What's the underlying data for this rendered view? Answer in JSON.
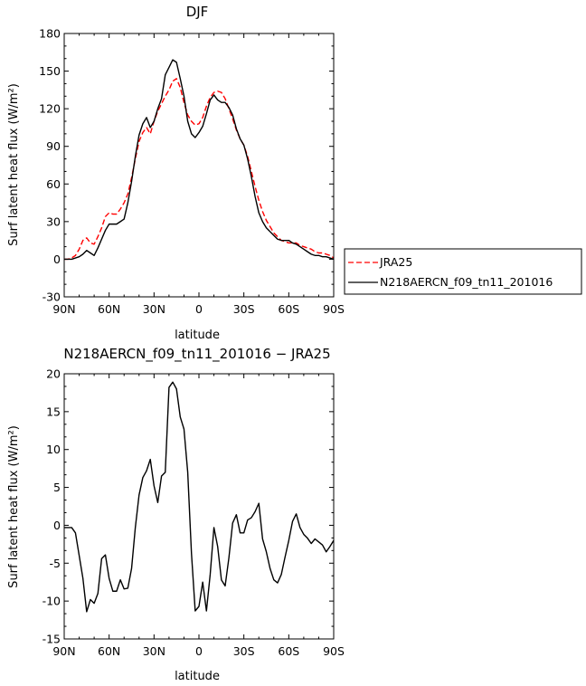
{
  "chart_data": [
    {
      "type": "line",
      "title": "DJF",
      "xlabel": "latitude",
      "ylabel": "Surf latent heat flux (W/m²)",
      "ylim": [
        -30,
        180
      ],
      "xlim": [
        90,
        -90
      ],
      "yticks": [
        -30,
        0,
        30,
        60,
        90,
        120,
        150,
        180
      ],
      "xticks": [
        90,
        60,
        30,
        0,
        -30,
        -60,
        -90
      ],
      "xtick_labels": [
        "90N",
        "60N",
        "30N",
        "0",
        "30S",
        "60S",
        "90S"
      ],
      "legend_position": "right-outside",
      "series": [
        {
          "name": "JRA25",
          "color": "#ff0000",
          "dash": "dashed",
          "x": [
            90,
            87.5,
            85,
            82.5,
            80,
            77.5,
            75,
            72.5,
            70,
            67.5,
            65,
            62.5,
            60,
            57.5,
            55,
            52.5,
            50,
            47.5,
            45,
            42.5,
            40,
            37.5,
            35,
            32.5,
            30,
            27.5,
            25,
            22.5,
            20,
            17.5,
            15,
            12.5,
            10,
            7.5,
            5,
            2.5,
            0,
            -2.5,
            -5,
            -7.5,
            -10,
            -12.5,
            -15,
            -17.5,
            -20,
            -22.5,
            -25,
            -27.5,
            -30,
            -32.5,
            -35,
            -37.5,
            -40,
            -42.5,
            -45,
            -47.5,
            -50,
            -52.5,
            -55,
            -57.5,
            -60,
            -62.5,
            -65,
            -67.5,
            -70,
            -72.5,
            -75,
            -77.5,
            -80,
            -82.5,
            -85,
            -87.5,
            -90
          ],
          "y": [
            0,
            0,
            1,
            3,
            8,
            15,
            17,
            13,
            12,
            18,
            25,
            34,
            37,
            36,
            36,
            40,
            45,
            52,
            65,
            80,
            94,
            101,
            105,
            100,
            110,
            118,
            124,
            130,
            135,
            142,
            144,
            137,
            125,
            115,
            110,
            107,
            108,
            113,
            122,
            129,
            133,
            134,
            133,
            128,
            120,
            112,
            103,
            96,
            91,
            82,
            70,
            58,
            47,
            38,
            31,
            26,
            21,
            18,
            15,
            14,
            13,
            13,
            13,
            11,
            10,
            9,
            8,
            6,
            5,
            5,
            4,
            3,
            1
          ]
        },
        {
          "name": "N218AERCN_f09_tn11_201016",
          "color": "#000000",
          "dash": "solid",
          "x": [
            90,
            87.5,
            85,
            82.5,
            80,
            77.5,
            75,
            72.5,
            70,
            67.5,
            65,
            62.5,
            60,
            57.5,
            55,
            52.5,
            50,
            47.5,
            45,
            42.5,
            40,
            37.5,
            35,
            32.5,
            30,
            27.5,
            25,
            22.5,
            20,
            17.5,
            15,
            12.5,
            10,
            7.5,
            5,
            2.5,
            0,
            -2.5,
            -5,
            -7.5,
            -10,
            -12.5,
            -15,
            -17.5,
            -20,
            -22.5,
            -25,
            -27.5,
            -30,
            -32.5,
            -35,
            -37.5,
            -40,
            -42.5,
            -45,
            -47.5,
            -50,
            -52.5,
            -55,
            -57.5,
            -60,
            -62.5,
            -65,
            -67.5,
            -70,
            -72.5,
            -75,
            -77.5,
            -80,
            -82.5,
            -85,
            -87.5,
            -90
          ],
          "y": [
            0,
            0,
            0,
            1,
            2,
            4,
            7,
            5,
            3,
            9,
            16,
            23,
            28,
            28,
            28,
            30,
            32,
            45,
            62,
            82,
            99,
            108,
            113,
            105,
            110,
            120,
            128,
            147,
            153,
            159,
            157,
            144,
            130,
            110,
            100,
            97,
            101,
            106,
            116,
            127,
            131,
            127,
            125,
            125,
            121,
            115,
            104,
            96,
            91,
            80,
            66,
            50,
            37,
            30,
            25,
            22,
            19,
            16,
            15,
            15,
            15,
            13,
            12,
            10,
            8,
            6,
            4,
            3,
            3,
            2,
            2,
            1,
            0
          ]
        }
      ]
    },
    {
      "type": "line",
      "title": "N218AERCN_f09_tn11_201016 − JRA25",
      "xlabel": "latitude",
      "ylabel": "Surf latent heat flux (W/m²)",
      "ylim": [
        -15,
        20
      ],
      "xlim": [
        90,
        -90
      ],
      "yticks": [
        -15,
        -10,
        -5,
        0,
        5,
        10,
        15,
        20
      ],
      "xticks": [
        90,
        60,
        30,
        0,
        -30,
        -60,
        -90
      ],
      "xtick_labels": [
        "90N",
        "60N",
        "30N",
        "0",
        "30S",
        "60S",
        "90S"
      ],
      "series": [
        {
          "color": "#000000",
          "dash": "solid",
          "x": [
            90,
            87.5,
            85,
            82.5,
            80,
            77.5,
            75,
            72.5,
            70,
            67.5,
            65,
            62.5,
            60,
            57.5,
            55,
            52.5,
            50,
            47.5,
            45,
            42.5,
            40,
            37.5,
            35,
            32.5,
            30,
            27.5,
            25,
            22.5,
            20,
            17.5,
            15,
            12.5,
            10,
            7.5,
            5,
            2.5,
            0,
            -2.5,
            -5,
            -7.5,
            -10,
            -12.5,
            -15,
            -17.5,
            -20,
            -22.5,
            -25,
            -27.5,
            -30,
            -32.5,
            -35,
            -37.5,
            -40,
            -42.5,
            -45,
            -47.5,
            -50,
            -52.5,
            -55,
            -57.5,
            -60,
            -62.5,
            -65,
            -67.5,
            -70,
            -72.5,
            -75,
            -77.5,
            -80,
            -82.5,
            -85,
            -87.5,
            -90
          ],
          "y": [
            -0.3,
            -0.3,
            -0.3,
            -1,
            -4,
            -7,
            -11.4,
            -9.8,
            -10.3,
            -9,
            -4.4,
            -3.9,
            -7,
            -8.7,
            -8.7,
            -7.2,
            -8.4,
            -8.3,
            -5.7,
            -0.3,
            4,
            6.3,
            7.2,
            8.7,
            5.2,
            3,
            6.5,
            7,
            18.2,
            18.9,
            18,
            14.3,
            12.7,
            7,
            -3.7,
            -11.3,
            -10.7,
            -7.5,
            -11.3,
            -6.5,
            -0.3,
            -2.8,
            -7.2,
            -8,
            -4.3,
            0.3,
            1.4,
            -1,
            -1,
            0.7,
            1,
            1.8,
            2.9,
            -1.8,
            -3.5,
            -5.7,
            -7.2,
            -7.6,
            -6.5,
            -4.2,
            -2,
            0.5,
            1.5,
            -0.3,
            -1.2,
            -1.7,
            -2.4,
            -1.8,
            -2.2,
            -2.6,
            -3.5,
            -2.8,
            -2
          ]
        }
      ]
    }
  ]
}
